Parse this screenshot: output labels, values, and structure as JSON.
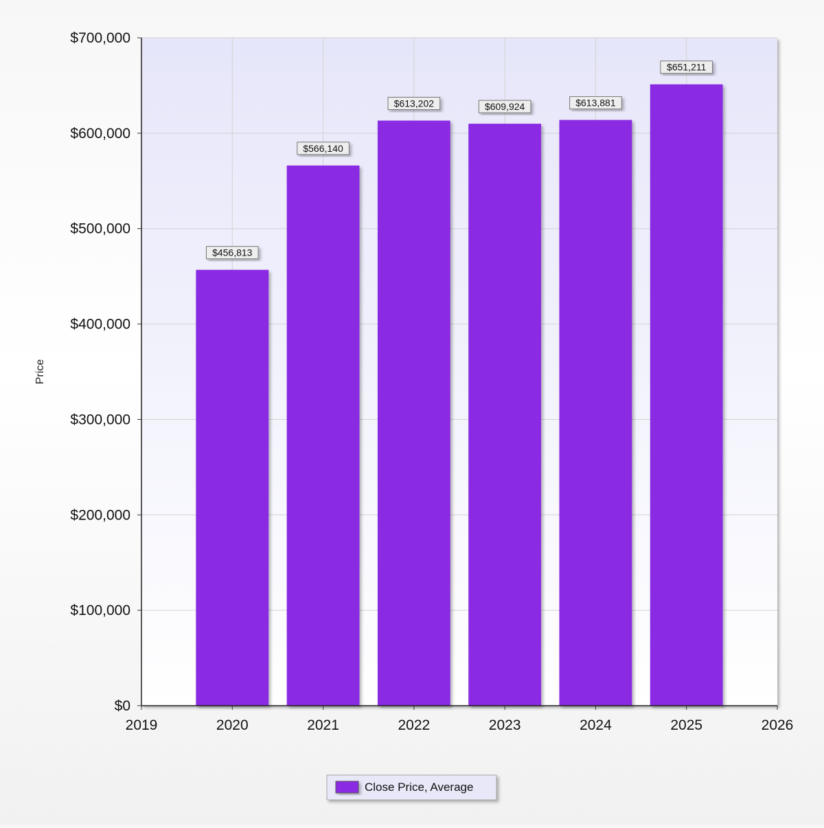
{
  "chart_data": {
    "type": "bar",
    "title": "",
    "xlabel": "",
    "ylabel": "Price",
    "x_ticks": [
      "2019",
      "2020",
      "2021",
      "2022",
      "2023",
      "2024",
      "2025",
      "2026"
    ],
    "y_ticks": [
      "$0",
      "$100,000",
      "$200,000",
      "$300,000",
      "$400,000",
      "$500,000",
      "$600,000",
      "$700,000"
    ],
    "xlim": [
      2019,
      2026
    ],
    "ylim": [
      0,
      700000
    ],
    "grid": true,
    "legend_position": "bottom-center",
    "categories": [
      "2020",
      "2021",
      "2022",
      "2023",
      "2024",
      "2025"
    ],
    "series": [
      {
        "name": "Close Price, Average",
        "color": "#8a2be2",
        "values": [
          456813,
          566140,
          613202,
          609924,
          613881,
          651211
        ],
        "labels": [
          "$456,813",
          "$566,140",
          "$613,202",
          "$609,924",
          "$613,881",
          "$651,211"
        ]
      }
    ]
  }
}
